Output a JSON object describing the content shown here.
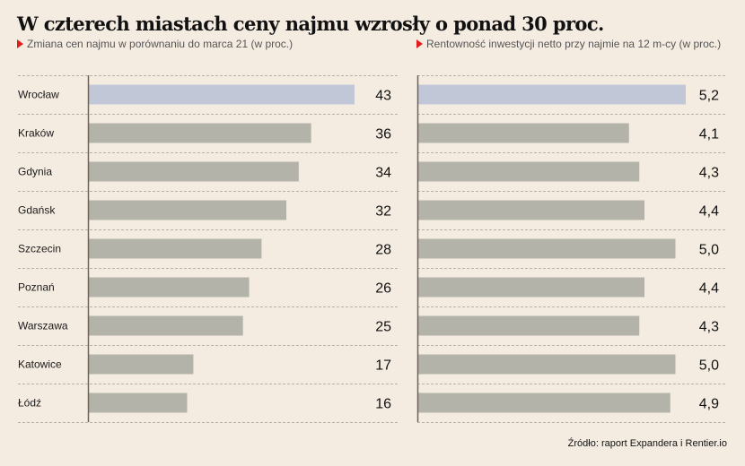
{
  "title": "W czterech miastach ceny najmu wzrosły o ponad 30 proc.",
  "source": "Źródło: raport Expandera i Rentier.io",
  "colors": {
    "background": "#f5ece1",
    "highlight_bar": "#c1c7d6",
    "bar": "#b4b3a9",
    "axis": "#6b6258",
    "grid": "#b8b0a6",
    "marker": "#e01e1e"
  },
  "chart_data": [
    {
      "type": "bar",
      "orientation": "horizontal",
      "title": "Zmiana cen najmu w porównaniu do marca 21 (w proc.)",
      "categories": [
        "Wrocław",
        "Kraków",
        "Gdynia",
        "Gdańsk",
        "Szczecin",
        "Poznań",
        "Warszawa",
        "Katowice",
        "Łódź"
      ],
      "values": [
        43,
        36,
        34,
        32,
        28,
        26,
        25,
        17,
        16
      ],
      "labels": [
        "43",
        "36",
        "34",
        "32",
        "28",
        "26",
        "25",
        "17",
        "16"
      ],
      "highlight": [
        "Wrocław"
      ],
      "xlim": [
        0,
        43
      ],
      "grid": true,
      "xlabel": "",
      "ylabel": ""
    },
    {
      "type": "bar",
      "orientation": "horizontal",
      "title": "Rentowność inwestycji netto przy najmie na 12 m-cy (w proc.)",
      "categories": [
        "Wrocław",
        "Kraków",
        "Gdynia",
        "Gdańsk",
        "Szczecin",
        "Poznań",
        "Warszawa",
        "Katowice",
        "Łódź"
      ],
      "values": [
        5.2,
        4.1,
        4.3,
        4.4,
        5.0,
        4.4,
        4.3,
        5.0,
        4.9
      ],
      "labels": [
        "5,2",
        "4,1",
        "4,3",
        "4,4",
        "5,0",
        "4,4",
        "4,3",
        "5,0",
        "4,9"
      ],
      "highlight": [
        "Wrocław"
      ],
      "xlim": [
        0,
        5.2
      ],
      "grid": true,
      "xlabel": "",
      "ylabel": ""
    }
  ]
}
